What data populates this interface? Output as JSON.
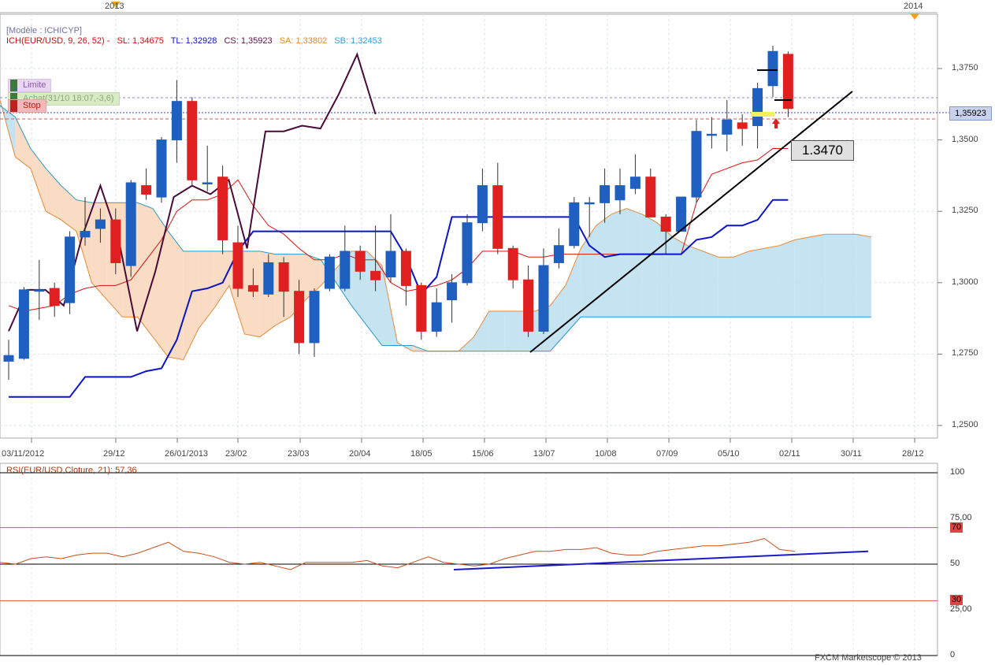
{
  "header": {
    "model": "[Modèle : ICHICYP]",
    "ich_name": "ICH(EUR/USD, 9, 26, 52) -",
    "sl": "SL: 1,34675",
    "tl": "TL: 1,32928",
    "cs": "CS: 1,35923",
    "sa": "SA: 1,33802",
    "sb": "SB: 1,32453"
  },
  "orders": {
    "limit": "Limite",
    "buy": "Achat(31/10 18:07,-3,6)",
    "stop": "Stop"
  },
  "annotation": {
    "price_box": "1.3470"
  },
  "price_tag": "1,35923",
  "years": [
    "2013",
    "2014"
  ],
  "credit": "FXCM Marketscope © 2013",
  "colors": {
    "bull": "#1e5fbf",
    "bear": "#e02020",
    "tenkan": "#dd1010",
    "kijun": "#0a14c8",
    "chikou": "#4a0a3a",
    "kumo_bear": "#f8d8bc",
    "kumo_bull": "#bfe0f0",
    "rsi": "#c8501a"
  },
  "chart_data": [
    {
      "type": "candlestick",
      "title": "ICH(EUR/USD, 9, 26, 52)",
      "x_tick_labels": [
        "03/11/2012",
        "29/12",
        "26/01/2013",
        "23/02",
        "23/03",
        "20/04",
        "18/05",
        "15/06",
        "13/07",
        "10/08",
        "07/09",
        "05/10",
        "02/11",
        "30/11",
        "28/12"
      ],
      "y_tick_labels": [
        "1,2500",
        "1,2750",
        "1,3000",
        "1,3250",
        "1,3500",
        "1,3750"
      ],
      "ylim": [
        1.2435,
        1.386
      ],
      "grid": true,
      "candles": [
        {
          "o": 1.2725,
          "c": 1.2745,
          "h": 1.28,
          "l": 1.266
        },
        {
          "o": 1.2735,
          "c": 1.2975,
          "h": 1.2985,
          "l": 1.273
        },
        {
          "o": 1.297,
          "c": 1.2975,
          "h": 1.308,
          "l": 1.287
        },
        {
          "o": 1.298,
          "c": 1.292,
          "h": 1.3,
          "l": 1.288
        },
        {
          "o": 1.293,
          "c": 1.316,
          "h": 1.318,
          "l": 1.289
        },
        {
          "o": 1.316,
          "c": 1.318,
          "h": 1.33,
          "l": 1.313
        },
        {
          "o": 1.319,
          "c": 1.322,
          "h": 1.326,
          "l": 1.314
        },
        {
          "o": 1.322,
          "c": 1.307,
          "h": 1.326,
          "l": 1.303
        },
        {
          "o": 1.306,
          "c": 1.335,
          "h": 1.336,
          "l": 1.302
        },
        {
          "o": 1.334,
          "c": 1.331,
          "h": 1.34,
          "l": 1.329
        },
        {
          "o": 1.33,
          "c": 1.35,
          "h": 1.351,
          "l": 1.328
        },
        {
          "o": 1.35,
          "c": 1.3635,
          "h": 1.371,
          "l": 1.342
        },
        {
          "o": 1.3635,
          "c": 1.336,
          "h": 1.365,
          "l": 1.334
        },
        {
          "o": 1.335,
          "c": 1.335,
          "h": 1.348,
          "l": 1.332
        },
        {
          "o": 1.337,
          "c": 1.315,
          "h": 1.341,
          "l": 1.31
        },
        {
          "o": 1.314,
          "c": 1.298,
          "h": 1.32,
          "l": 1.295
        },
        {
          "o": 1.299,
          "c": 1.297,
          "h": 1.305,
          "l": 1.295
        },
        {
          "o": 1.296,
          "c": 1.307,
          "h": 1.31,
          "l": 1.295
        },
        {
          "o": 1.307,
          "c": 1.297,
          "h": 1.309,
          "l": 1.288
        },
        {
          "o": 1.297,
          "c": 1.279,
          "h": 1.301,
          "l": 1.275
        },
        {
          "o": 1.279,
          "c": 1.297,
          "h": 1.298,
          "l": 1.274
        },
        {
          "o": 1.298,
          "c": 1.309,
          "h": 1.31,
          "l": 1.297
        },
        {
          "o": 1.298,
          "c": 1.311,
          "h": 1.32,
          "l": 1.297
        },
        {
          "o": 1.311,
          "c": 1.304,
          "h": 1.313,
          "l": 1.301
        },
        {
          "o": 1.304,
          "c": 1.301,
          "h": 1.32,
          "l": 1.297
        },
        {
          "o": 1.302,
          "c": 1.311,
          "h": 1.324,
          "l": 1.3
        },
        {
          "o": 1.311,
          "c": 1.299,
          "h": 1.312,
          "l": 1.292
        },
        {
          "o": 1.299,
          "c": 1.283,
          "h": 1.3,
          "l": 1.28
        },
        {
          "o": 1.283,
          "c": 1.293,
          "h": 1.298,
          "l": 1.281
        },
        {
          "o": 1.294,
          "c": 1.3,
          "h": 1.303,
          "l": 1.286
        },
        {
          "o": 1.3,
          "c": 1.321,
          "h": 1.324,
          "l": 1.299
        },
        {
          "o": 1.321,
          "c": 1.334,
          "h": 1.34,
          "l": 1.318
        },
        {
          "o": 1.334,
          "c": 1.312,
          "h": 1.342,
          "l": 1.31
        },
        {
          "o": 1.312,
          "c": 1.301,
          "h": 1.313,
          "l": 1.298
        },
        {
          "o": 1.301,
          "c": 1.283,
          "h": 1.306,
          "l": 1.281
        },
        {
          "o": 1.283,
          "c": 1.306,
          "h": 1.312,
          "l": 1.282
        },
        {
          "o": 1.307,
          "c": 1.313,
          "h": 1.319,
          "l": 1.305
        },
        {
          "o": 1.313,
          "c": 1.328,
          "h": 1.33,
          "l": 1.312
        },
        {
          "o": 1.328,
          "c": 1.328,
          "h": 1.33,
          "l": 1.316
        },
        {
          "o": 1.328,
          "c": 1.334,
          "h": 1.34,
          "l": 1.321
        },
        {
          "o": 1.329,
          "c": 1.334,
          "h": 1.34,
          "l": 1.324
        },
        {
          "o": 1.333,
          "c": 1.337,
          "h": 1.345,
          "l": 1.331
        },
        {
          "o": 1.337,
          "c": 1.323,
          "h": 1.34,
          "l": 1.323
        },
        {
          "o": 1.323,
          "c": 1.318,
          "h": 1.324,
          "l": 1.31
        },
        {
          "o": 1.318,
          "c": 1.33,
          "h": 1.33,
          "l": 1.318
        },
        {
          "o": 1.33,
          "c": 1.353,
          "h": 1.357,
          "l": 1.328
        },
        {
          "o": 1.352,
          "c": 1.352,
          "h": 1.358,
          "l": 1.347
        },
        {
          "o": 1.352,
          "c": 1.357,
          "h": 1.364,
          "l": 1.346
        },
        {
          "o": 1.356,
          "c": 1.354,
          "h": 1.359,
          "l": 1.348
        },
        {
          "o": 1.355,
          "c": 1.368,
          "h": 1.37,
          "l": 1.347
        },
        {
          "o": 1.369,
          "c": 1.381,
          "h": 1.383,
          "l": 1.365
        },
        {
          "o": 1.38,
          "c": 1.361,
          "h": 1.381,
          "l": 1.358
        }
      ],
      "series": [
        {
          "name": "SL",
          "values": [
            1.292,
            1.29,
            1.291,
            1.292,
            1.296,
            1.298,
            1.299,
            1.299,
            1.301,
            1.308,
            1.315,
            1.325,
            1.329,
            1.329,
            1.331,
            1.336,
            1.327,
            1.32,
            1.317,
            1.312,
            1.308,
            1.308,
            1.31,
            1.308,
            1.308,
            1.3,
            1.297,
            1.298,
            1.299,
            1.301,
            1.305,
            1.311,
            1.311,
            1.311,
            1.309,
            1.309,
            1.31,
            1.31,
            1.31,
            1.31,
            1.31,
            1.31,
            1.31,
            1.31,
            1.31,
            1.328,
            1.338,
            1.34,
            1.342,
            1.343,
            1.347,
            1.347
          ]
        },
        {
          "name": "TL",
          "values": [
            1.26,
            1.26,
            1.26,
            1.26,
            1.26,
            1.267,
            1.267,
            1.267,
            1.267,
            1.269,
            1.27,
            1.28,
            1.297,
            1.298,
            1.3,
            1.311,
            1.318,
            1.318,
            1.318,
            1.318,
            1.318,
            1.318,
            1.318,
            1.318,
            1.318,
            1.318,
            1.309,
            1.296,
            1.302,
            1.323,
            1.323,
            1.323,
            1.323,
            1.323,
            1.323,
            1.323,
            1.323,
            1.323,
            1.313,
            1.309,
            1.31,
            1.31,
            1.31,
            1.31,
            1.31,
            1.315,
            1.316,
            1.32,
            1.32,
            1.322,
            1.329,
            1.329
          ]
        },
        {
          "name": "CS",
          "values": [
            1.283,
            1.2975,
            1.2975,
            1.292,
            1.316,
            1.334,
            1.315,
            1.283,
            1.304,
            1.33,
            1.334,
            1.331,
            1.336,
            1.312,
            1.353,
            1.353,
            1.355,
            1.354,
            1.366,
            1.38,
            1.359
          ]
        },
        {
          "name": "SA",
          "values": [
            1.364,
            1.344,
            1.34,
            1.325,
            1.322,
            1.318,
            1.3,
            1.294,
            1.288,
            1.288,
            1.281,
            1.274,
            1.273,
            1.284,
            1.291,
            1.299,
            1.282,
            1.281,
            1.285,
            1.288,
            1.294,
            1.299,
            1.305,
            1.311,
            1.311,
            1.306,
            1.279,
            1.276,
            1.276,
            1.276,
            1.276,
            1.281,
            1.29,
            1.29,
            1.29,
            1.29,
            1.292,
            1.299,
            1.312,
            1.32,
            1.324,
            1.326,
            1.324,
            1.321,
            1.316,
            1.313,
            1.311,
            1.309,
            1.309,
            1.311,
            1.312,
            1.313,
            1.315,
            1.316,
            1.317,
            1.317,
            1.317,
            1.316
          ]
        },
        {
          "name": "SB",
          "values": [
            1.362,
            1.358,
            1.347,
            1.34,
            1.334,
            1.329,
            1.328,
            1.328,
            1.328,
            1.328,
            1.326,
            1.318,
            1.311,
            1.311,
            1.311,
            1.311,
            1.311,
            1.311,
            1.31,
            1.31,
            1.31,
            1.308,
            1.3,
            1.292,
            1.285,
            1.278,
            1.278,
            1.278,
            1.276,
            1.276,
            1.276,
            1.276,
            1.276,
            1.276,
            1.276,
            1.276,
            1.276,
            1.282,
            1.288,
            1.288,
            1.288,
            1.288,
            1.288,
            1.288,
            1.288,
            1.288,
            1.288,
            1.288,
            1.288,
            1.288,
            1.288,
            1.288,
            1.288,
            1.288,
            1.288,
            1.288,
            1.288,
            1.288
          ]
        }
      ],
      "annotations": [
        {
          "text": "1.3470",
          "type": "trendline"
        },
        {
          "text": "Limite",
          "type": "order"
        },
        {
          "text": "Achat(31/10 18:07,-3,6)",
          "type": "order"
        },
        {
          "text": "Stop",
          "type": "order"
        }
      ]
    },
    {
      "type": "line",
      "title": "RSI(EUR/USD,Cloture, 21): 57,36",
      "ylim": [
        0,
        100
      ],
      "y_tick_labels": [
        "100",
        "75,00",
        "70",
        "50",
        "30",
        "25,00",
        "0"
      ],
      "levels": [
        100,
        70,
        50,
        30,
        0
      ],
      "series": [
        {
          "name": "RSI",
          "values": [
            51,
            50,
            53,
            54,
            53,
            55,
            56,
            56,
            54,
            56,
            59,
            62,
            57,
            56,
            54,
            51,
            50,
            51,
            49,
            47,
            51,
            51,
            51,
            51,
            52,
            49,
            48,
            51,
            54,
            51,
            50,
            49,
            50,
            53,
            55,
            57,
            57,
            58,
            58,
            59,
            56,
            55,
            55,
            57,
            58,
            59,
            60,
            60,
            61,
            62,
            64,
            58,
            57
          ]
        },
        {
          "name": "RSI trendline",
          "values": [
            47,
            57
          ]
        }
      ]
    }
  ]
}
